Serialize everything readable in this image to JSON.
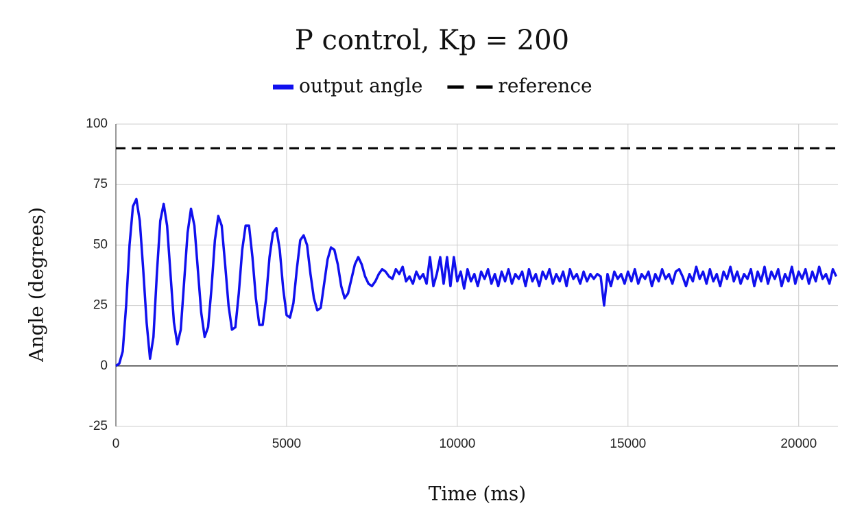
{
  "chart_data": {
    "type": "line",
    "title": "P control, Kp = 200",
    "x_label": "Time (ms)",
    "y_label": "Angle (degrees)",
    "x": [
      0,
      100,
      200,
      300,
      400,
      500,
      600,
      700,
      800,
      900,
      1000,
      1100,
      1200,
      1300,
      1400,
      1500,
      1600,
      1700,
      1800,
      1900,
      2000,
      2100,
      2200,
      2300,
      2400,
      2500,
      2600,
      2700,
      2800,
      2900,
      3000,
      3100,
      3200,
      3300,
      3400,
      3500,
      3600,
      3700,
      3800,
      3900,
      4000,
      4100,
      4200,
      4300,
      4400,
      4500,
      4600,
      4700,
      4800,
      4900,
      5000,
      5100,
      5200,
      5300,
      5400,
      5500,
      5600,
      5700,
      5800,
      5900,
      6000,
      6100,
      6200,
      6300,
      6400,
      6500,
      6600,
      6700,
      6800,
      6900,
      7000,
      7100,
      7200,
      7300,
      7400,
      7500,
      7600,
      7700,
      7800,
      7900,
      8000,
      8100,
      8200,
      8300,
      8400,
      8500,
      8600,
      8700,
      8800,
      8900,
      9000,
      9100,
      9200,
      9300,
      9400,
      9500,
      9600,
      9700,
      9800,
      9900,
      10000,
      10100,
      10200,
      10300,
      10400,
      10500,
      10600,
      10700,
      10800,
      10900,
      11000,
      11100,
      11200,
      11300,
      11400,
      11500,
      11600,
      11700,
      11800,
      11900,
      12000,
      12100,
      12200,
      12300,
      12400,
      12500,
      12600,
      12700,
      12800,
      12900,
      13000,
      13100,
      13200,
      13300,
      13400,
      13500,
      13600,
      13700,
      13800,
      13900,
      14000,
      14100,
      14200,
      14300,
      14400,
      14500,
      14600,
      14700,
      14800,
      14900,
      15000,
      15100,
      15200,
      15300,
      15400,
      15500,
      15600,
      15700,
      15800,
      15900,
      16000,
      16100,
      16200,
      16300,
      16400,
      16500,
      16600,
      16700,
      16800,
      16900,
      17000,
      17100,
      17200,
      17300,
      17400,
      17500,
      17600,
      17700,
      17800,
      17900,
      18000,
      18100,
      18200,
      18300,
      18400,
      18500,
      18600,
      18700,
      18800,
      18900,
      19000,
      19100,
      19200,
      19300,
      19400,
      19500,
      19600,
      19700,
      19800,
      19900,
      20000,
      20100,
      20200,
      20300,
      20400,
      20500,
      20600,
      20700,
      20800,
      20900,
      21000,
      21100
    ],
    "series": [
      {
        "name": "output angle",
        "color": "#1010ee",
        "values": [
          0,
          1,
          6,
          25,
          50,
          66,
          69,
          60,
          40,
          18,
          3,
          12,
          38,
          60,
          67,
          58,
          38,
          18,
          9,
          15,
          35,
          55,
          65,
          58,
          40,
          22,
          12,
          16,
          32,
          52,
          62,
          58,
          42,
          25,
          15,
          16,
          30,
          48,
          58,
          58,
          45,
          28,
          17,
          17,
          28,
          45,
          55,
          57,
          48,
          32,
          21,
          20,
          26,
          40,
          52,
          54,
          50,
          38,
          28,
          23,
          24,
          34,
          44,
          49,
          48,
          42,
          33,
          28,
          30,
          36,
          42,
          45,
          42,
          37,
          34,
          33,
          35,
          38,
          40,
          39,
          37,
          36,
          40,
          38,
          41,
          35,
          37,
          34,
          39,
          36,
          38,
          34,
          45,
          33,
          38,
          45,
          34,
          45,
          33,
          45,
          35,
          39,
          32,
          40,
          35,
          38,
          33,
          39,
          36,
          40,
          34,
          38,
          33,
          39,
          35,
          40,
          34,
          38,
          36,
          39,
          33,
          40,
          35,
          38,
          33,
          39,
          36,
          40,
          34,
          38,
          35,
          39,
          33,
          40,
          36,
          38,
          34,
          39,
          35,
          38,
          36,
          38,
          37,
          25,
          38,
          33,
          39,
          36,
          38,
          34,
          39,
          35,
          40,
          34,
          38,
          36,
          39,
          33,
          38,
          35,
          40,
          36,
          38,
          34,
          39,
          40,
          37,
          33,
          38,
          35,
          41,
          36,
          39,
          34,
          40,
          35,
          38,
          33,
          39,
          36,
          41,
          35,
          39,
          34,
          38,
          36,
          40,
          33,
          39,
          35,
          41,
          34,
          39,
          36,
          40,
          33,
          38,
          35,
          41,
          34,
          39,
          36,
          40,
          34,
          39,
          35,
          41,
          36,
          38,
          34,
          40,
          37
        ]
      },
      {
        "name": "reference",
        "color": "#000000",
        "dashed": true,
        "x": [
          0,
          21150
        ],
        "values": [
          90,
          90
        ]
      }
    ],
    "xlim": [
      0,
      21150
    ],
    "xticks": [
      0,
      5000,
      10000,
      15000,
      20000
    ],
    "ylim": [
      -25,
      100
    ],
    "yticks": [
      -25,
      0,
      25,
      50,
      75,
      100
    ],
    "grid": true
  }
}
